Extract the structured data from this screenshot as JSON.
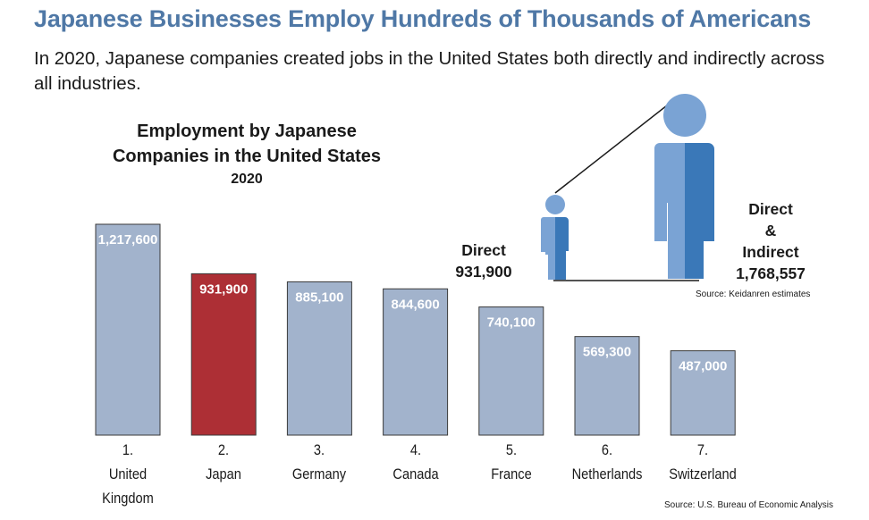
{
  "header": {
    "title": "Japanese Businesses Employ Hundreds of Thousands of Americans",
    "subtitle": "In 2020, Japanese companies created jobs in the United States both directly and indirectly across all industries."
  },
  "chart_data": [
    {
      "type": "bar",
      "title_lines": [
        "Employment by Japanese",
        "Companies in the United States"
      ],
      "year": "2020",
      "categories": [
        [
          "1.",
          "United",
          "Kingdom"
        ],
        [
          "2.",
          "Japan"
        ],
        [
          "3.",
          "Germany"
        ],
        [
          "4.",
          "Canada"
        ],
        [
          "5.",
          "France"
        ],
        [
          "6.",
          "Netherlands"
        ],
        [
          "7.",
          "Switzerland"
        ]
      ],
      "values": [
        1217600,
        931900,
        885100,
        844600,
        740100,
        569300,
        487000
      ],
      "value_labels": [
        "1,217,600",
        "931,900",
        "885,100",
        "844,600",
        "740,100",
        "569,300",
        "487,000"
      ],
      "highlight_index": 1,
      "ylim": [
        0,
        1217600
      ],
      "grid": false,
      "colors": {
        "bar": "#a2b3cc",
        "highlight": "#ad2f35",
        "bar_border": "#3a3a3a",
        "label": "#ffffff"
      },
      "source": "Source: U.S. Bureau of Economic Analysis"
    },
    {
      "type": "pictogram",
      "items": [
        {
          "label_lines": [
            "Direct",
            "931,900"
          ],
          "value": 931900
        },
        {
          "label_lines": [
            "Direct",
            "&",
            "Indirect",
            "1,768,557"
          ],
          "value": 1768557
        }
      ],
      "colors": {
        "light": "#7aa3d4",
        "dark": "#3a78b8"
      },
      "source": "Source: Keidanren estimates"
    }
  ]
}
